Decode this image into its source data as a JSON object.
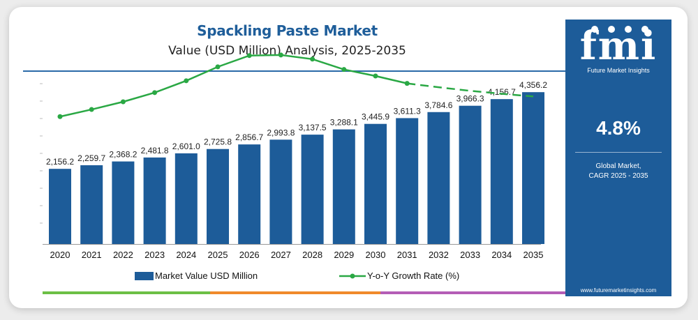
{
  "title": "Spackling Paste Market",
  "subtitle": "Value (USD Million) Analysis, 2025-2035",
  "sidebar": {
    "logo_text": "fmi",
    "tagline": "Future Market Insights",
    "cagr_value": "4.8%",
    "cagr_label_line1": "Global Market,",
    "cagr_label_line2": "CAGR 2025 - 2035",
    "website": "www.futuremarketinsights.com"
  },
  "colors": {
    "bar": "#1d5c99",
    "line": "#2aa844",
    "title": "#1f5e9a",
    "sidebar": "#1d5c99",
    "bottom_bar": [
      "#6cbf45",
      "#f08a2b",
      "#b45db6"
    ]
  },
  "chart_data": {
    "type": "bar",
    "categories": [
      "2020",
      "2021",
      "2022",
      "2023",
      "2024",
      "2025",
      "2026",
      "2027",
      "2028",
      "2029",
      "2030",
      "2031",
      "2032",
      "2033",
      "2034",
      "2035"
    ],
    "series": [
      {
        "name": "Market Value USD Million",
        "type": "bar",
        "values": [
          2156.2,
          2259.7,
          2368.2,
          2481.8,
          2601.0,
          2725.8,
          2856.7,
          2993.8,
          3137.5,
          3288.1,
          3445.9,
          3611.3,
          3784.6,
          3966.3,
          4156.7,
          4356.2
        ],
        "labels": [
          "2,156.2",
          "2,259.7",
          "2,368.2",
          "2,481.8",
          "2,601.0",
          "2,725.8",
          "2,856.7",
          "2,993.8",
          "3,137.5",
          "3,288.1",
          "3,445.9",
          "3,611.3",
          "3,784.6",
          "3,966.3",
          "4,156.7",
          "4,356.2"
        ]
      },
      {
        "name": "Y-o-Y Growth Rate (%)",
        "type": "line",
        "values": [
          4.3,
          4.54,
          4.8,
          5.11,
          5.51,
          5.98,
          6.36,
          6.38,
          6.24,
          5.89,
          5.67,
          5.42,
          5.29,
          5.17,
          5.07,
          4.98
        ],
        "dashed_from_index": 11
      }
    ],
    "bar_ylim": [
      0,
      5600
    ],
    "line_ylim": [
      0,
      8
    ],
    "legend_position": "bottom",
    "grid": false
  }
}
